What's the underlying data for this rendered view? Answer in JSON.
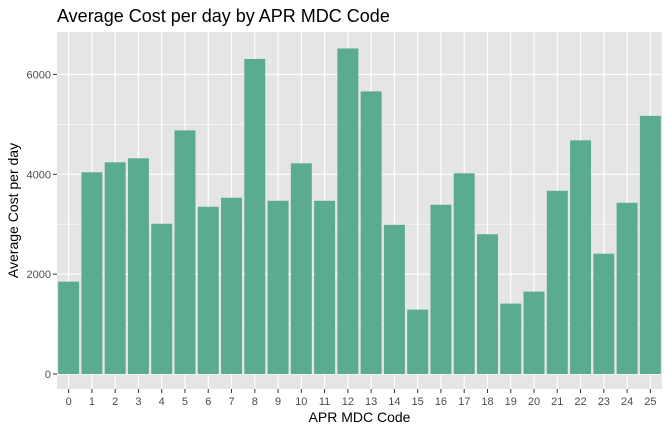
{
  "chart_data": {
    "type": "bar",
    "title": "Average Cost per day by APR MDC Code",
    "xlabel": "APR MDC Code",
    "ylabel": "Average Cost per day",
    "categories": [
      "0",
      "1",
      "2",
      "3",
      "4",
      "5",
      "6",
      "7",
      "8",
      "9",
      "10",
      "11",
      "12",
      "13",
      "14",
      "15",
      "16",
      "17",
      "18",
      "19",
      "20",
      "21",
      "22",
      "23",
      "24",
      "25"
    ],
    "values": [
      1850,
      4040,
      4240,
      4320,
      3010,
      4880,
      3350,
      3530,
      6310,
      3470,
      4220,
      3470,
      6520,
      5660,
      2990,
      1290,
      3390,
      4020,
      2800,
      1410,
      1650,
      3670,
      4680,
      2410,
      3430,
      5170
    ],
    "yticks": [
      0,
      2000,
      4000,
      6000
    ],
    "ylim": [
      -300,
      6850
    ],
    "bar_color": "#5aab91",
    "panel_color": "#e5e5e5",
    "grid_color": "#ffffff",
    "grid": true,
    "legend": "none"
  }
}
